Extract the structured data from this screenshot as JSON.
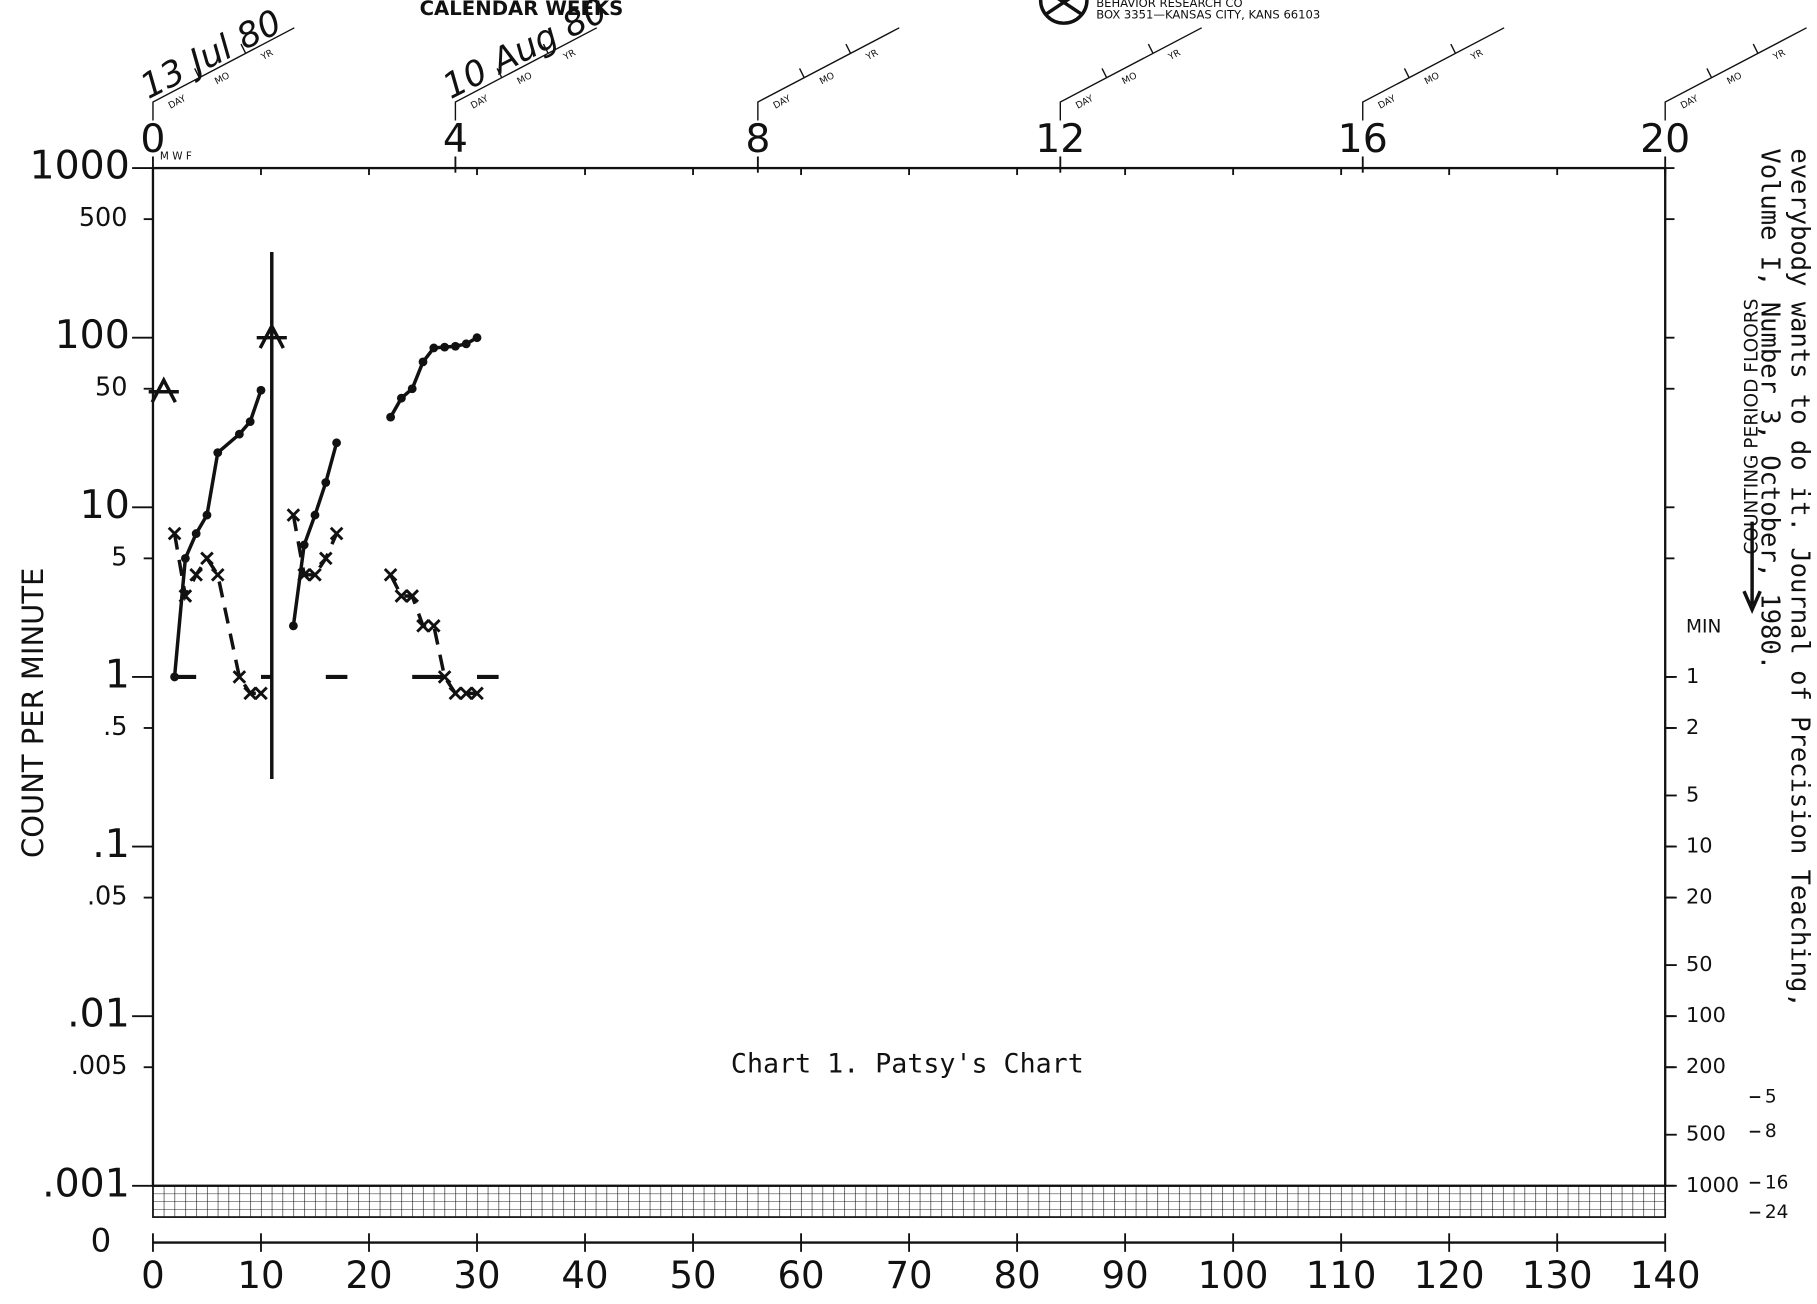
{
  "chart_data": {
    "type": "line",
    "title": "Chart 1. Patsy's Chart",
    "header": "CALENDAR WEEKS",
    "publisher": [
      "BEHAVIOR RESEARCH CO",
      "BOX 3351—KANSAS CITY, KANS 66103"
    ],
    "ylabel": "COUNT PER MINUTE",
    "y2label": "COUNTING PERIOD FLOORS",
    "y2unit": "MIN",
    "weekday_labels": "M W F",
    "date_labels": [
      "13 Jul 80",
      "10 Aug 80"
    ],
    "date_fields": [
      "DAY",
      "MO",
      "YR"
    ],
    "citation": [
      "everybody wants to do it. Journal of Precision Teaching,",
      "Volume I, Number 3, October, 1980."
    ],
    "yscale": "log",
    "xlim": [
      0,
      140
    ],
    "xticks": [
      0,
      10,
      20,
      30,
      40,
      50,
      60,
      70,
      80,
      90,
      100,
      110,
      120,
      130,
      140
    ],
    "ylim": [
      0.001,
      1000
    ],
    "yticks": [
      1000,
      500,
      100,
      50,
      10,
      5,
      1,
      {
        "value": 0.5,
        "label": ".5"
      },
      {
        "value": 0.1,
        "label": ".1"
      },
      {
        "value": 0.05,
        "label": ".05"
      },
      {
        "value": 0.01,
        "label": ".01"
      },
      {
        "value": 0.005,
        "label": ".005"
      },
      {
        "value": 0.001,
        "label": ".001"
      }
    ],
    "zero_label": "0",
    "top_xlim": [
      0,
      20
    ],
    "top_xticks": [
      0,
      4,
      8,
      12,
      16,
      20
    ],
    "floor_ticks": [
      1,
      2,
      5,
      10,
      20,
      50,
      100,
      200,
      500,
      1000
    ],
    "hour_ticks": [
      5,
      8,
      16,
      24
    ],
    "series": [
      {
        "color": "#111",
        "marker": "dot",
        "dashed": false,
        "x": [
          2,
          3,
          4,
          5,
          6,
          8,
          9,
          10,
          11,
          13,
          14,
          15,
          16,
          17,
          19,
          22,
          23,
          24,
          25,
          26,
          27,
          28,
          29,
          30
        ],
        "values": [
          1,
          5,
          7,
          9,
          21,
          27,
          32,
          49,
          null,
          2,
          6,
          9,
          14,
          24,
          null,
          34,
          44,
          50,
          72,
          87,
          88,
          89,
          92,
          100
        ]
      },
      {
        "color": "#111",
        "marker": "x",
        "dashed": true,
        "x": [
          2,
          3,
          4,
          5,
          6,
          8,
          9,
          10,
          11,
          13,
          14,
          15,
          16,
          17,
          19,
          22,
          23,
          24,
          25,
          26,
          27,
          28,
          29,
          30
        ],
        "values": [
          7,
          3,
          4,
          5,
          4,
          1,
          0.8,
          0.8,
          null,
          9,
          4,
          4,
          5,
          7,
          null,
          4,
          3,
          3,
          2,
          2,
          1,
          0.8,
          0.8,
          0.8
        ]
      }
    ],
    "record_floor": {
      "value": 1,
      "days": [
        [
          2,
          4
        ],
        [
          10,
          11
        ],
        [
          16,
          18
        ],
        [
          24,
          27
        ],
        [
          30,
          32
        ]
      ]
    },
    "phase_line": {
      "x": 11,
      "ylim": [
        320,
        0.25
      ]
    },
    "aims": [
      {
        "x": 1,
        "value": 48
      },
      {
        "x": 11,
        "value": 100
      }
    ]
  }
}
